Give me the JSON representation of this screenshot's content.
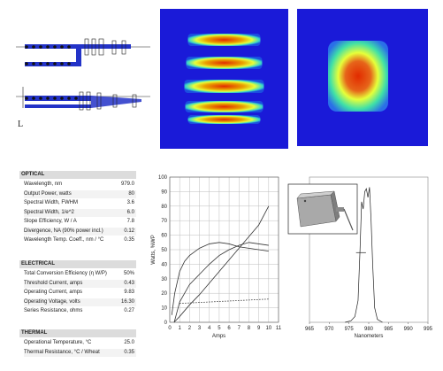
{
  "colors": {
    "heatmap_background": "#1a1ad8",
    "heatmap_low": "#2fd7d0",
    "heatmap_mid": "#e6ff3a",
    "heatmap_high": "#e22b00",
    "optics_beam": "#2333c8",
    "section_header_bg": "#dcdcdc"
  },
  "diagram": {
    "corner_mark": "L"
  },
  "spec_table": {
    "sections": [
      {
        "title": "OPTICAL",
        "rows": [
          {
            "label": "Wavelength, nm",
            "value": "979.0"
          },
          {
            "label": "Output Power, watts",
            "value": "80"
          },
          {
            "label": "Spectral Width, FWHM",
            "value": "3.6"
          },
          {
            "label": "Spectral Width, 1/e^2",
            "value": "6.0"
          },
          {
            "label": "Slope Efficiency, W / A",
            "value": "7.8"
          },
          {
            "label": "Divergence, NA (90% power incl.)",
            "value": "0.12"
          },
          {
            "label": "Wavelength Temp. Coeff., nm / °C",
            "value": "0.35"
          }
        ]
      },
      {
        "title": "ELECTRICAL",
        "rows": [
          {
            "label": "Total Conversion Efficiency (η W/P)",
            "value": "50%"
          },
          {
            "label": "Threshold Current, amps",
            "value": "0.43"
          },
          {
            "label": "Operating Current, amps",
            "value": "9.83"
          },
          {
            "label": "Operating Voltage, volts",
            "value": "16.30"
          },
          {
            "label": "Series Resistance, ohms",
            "value": "0.27"
          }
        ]
      },
      {
        "title": "THERMAL",
        "rows": [
          {
            "label": "Operational Temperature, °C",
            "value": "25.0"
          },
          {
            "label": "Thermal Resistance, °C / Wheat",
            "value": "0.35"
          }
        ]
      }
    ]
  },
  "chart_data": [
    {
      "type": "line",
      "xlabel": "Amps",
      "ylabel": "Watts, %WP",
      "xlim": [
        0,
        11
      ],
      "ylim": [
        0,
        100
      ],
      "xticks": [
        "0",
        "1",
        "2",
        "3",
        "4",
        "5",
        "6",
        "7",
        "8",
        "9",
        "10",
        "11"
      ],
      "yticks": [
        "0",
        "10",
        "20",
        "30",
        "40",
        "50",
        "60",
        "70",
        "80",
        "90",
        "100"
      ],
      "grid": true,
      "series": [
        {
          "style": "solid",
          "x": [
            0.43,
            1,
            2,
            3,
            4,
            5,
            6,
            7,
            8,
            9,
            10
          ],
          "y": [
            0,
            4,
            12,
            19,
            27,
            35,
            43,
            51,
            59,
            67,
            80
          ]
        },
        {
          "style": "solid",
          "x": [
            0.2,
            0.5,
            1,
            1.5,
            2,
            3,
            4,
            5,
            6,
            7,
            8,
            9,
            10
          ],
          "y": [
            5,
            20,
            35,
            42,
            46,
            51,
            54,
            55,
            54,
            52,
            51,
            50,
            49
          ]
        },
        {
          "style": "solid",
          "x": [
            0.45,
            1,
            2,
            3,
            4,
            5,
            6,
            7,
            8,
            9,
            10
          ],
          "y": [
            0,
            14,
            26,
            33,
            40,
            46,
            50,
            53,
            55,
            54,
            53
          ]
        },
        {
          "style": "dotted",
          "x": [
            1,
            10
          ],
          "y": [
            13,
            16
          ]
        }
      ]
    },
    {
      "type": "line",
      "xlabel": "Nanometers",
      "xlim": [
        965,
        995
      ],
      "ylim": [
        0,
        1
      ],
      "xticks": [
        "965",
        "970",
        "975",
        "980",
        "985",
        "990",
        "995"
      ],
      "grid": false,
      "series": [
        {
          "style": "solid",
          "x": [
            974,
            975.5,
            976.5,
            977.3,
            977.8,
            978.2,
            978.6,
            979,
            979.4,
            979.8,
            980.2,
            980.6,
            981,
            981.5,
            982.2,
            983.5
          ],
          "y": [
            0,
            0.01,
            0.04,
            0.15,
            0.5,
            0.83,
            0.78,
            0.9,
            0.92,
            0.86,
            0.93,
            0.7,
            0.4,
            0.1,
            0.02,
            0
          ]
        },
        {
          "style": "solid",
          "x": [
            976.8,
            979.3
          ],
          "y": [
            0.48,
            0.48
          ]
        }
      ]
    }
  ]
}
